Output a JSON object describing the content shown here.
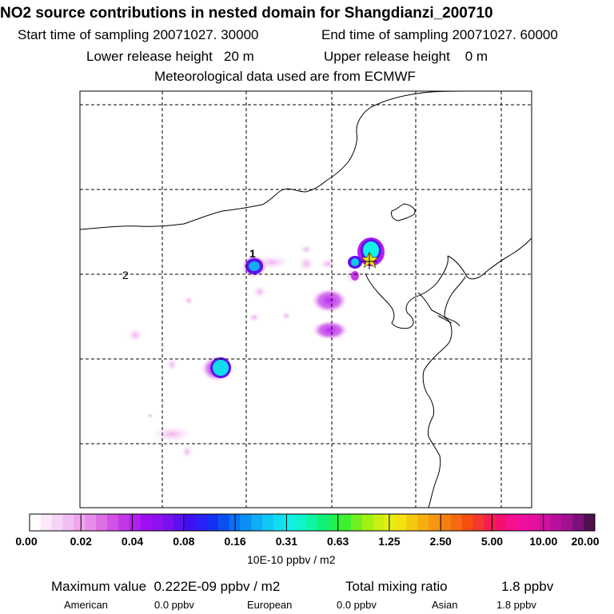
{
  "header": {
    "title": "NO2 source contributions in nested domain for Shangdianzi_200710",
    "start_label": "Start time of sampling 20071027. 30000",
    "end_label": "End time of sampling 20071027. 60000",
    "lower_label": "Lower release height   20 m",
    "upper_label": "Upper release height    0 m",
    "met_label": "Meteorological data used are from ECMWF"
  },
  "map": {
    "markers": [
      "1",
      "2"
    ]
  },
  "colorbar": {
    "ticks": [
      "0.00",
      "0.02",
      "0.04",
      "0.08",
      "0.16",
      "0.31",
      "0.63",
      "1.25",
      "2.50",
      "5.00",
      "10.00",
      "20.00"
    ],
    "colors": [
      "#ffffff",
      "#fbe8fb",
      "#f7d3f7",
      "#f2bdf2",
      "#eea5ee",
      "#e68ee9",
      "#dc70e6",
      "#d352e6",
      "#c338e6",
      "#b41ff0",
      "#a010f5",
      "#8f10f0",
      "#7a10ee",
      "#5c10f0",
      "#4010f5",
      "#2820f5",
      "#1530f0",
      "#0a50f0",
      "#0a70f5",
      "#0a90f5",
      "#10acf5",
      "#10c8f5",
      "#10def0",
      "#10f0e6",
      "#10f5c8",
      "#10f5a0",
      "#10f078",
      "#20f050",
      "#40f030",
      "#70f020",
      "#a0f010",
      "#c8f010",
      "#e6f010",
      "#f5e010",
      "#f5c810",
      "#f5b010",
      "#f59810",
      "#f58010",
      "#f56a10",
      "#f55010",
      "#f53830",
      "#f52050",
      "#f51070",
      "#f51090",
      "#f010a0",
      "#e610a0",
      "#d010a0",
      "#b8109c",
      "#a01090",
      "#7a1078",
      "#501050"
    ],
    "unit": "10E-10 ppbv / m2"
  },
  "footer": {
    "max_label": "Maximum value  0.222E-09 ppbv / m2",
    "total_label": "Total mixing ratio",
    "total_value": "1.8 ppbv",
    "american_label": "American",
    "american_value": "0.0 ppbv",
    "european_label": "European",
    "european_value": "0.0 ppbv",
    "asian_label": "Asian",
    "asian_value": "1.8 ppbv"
  }
}
